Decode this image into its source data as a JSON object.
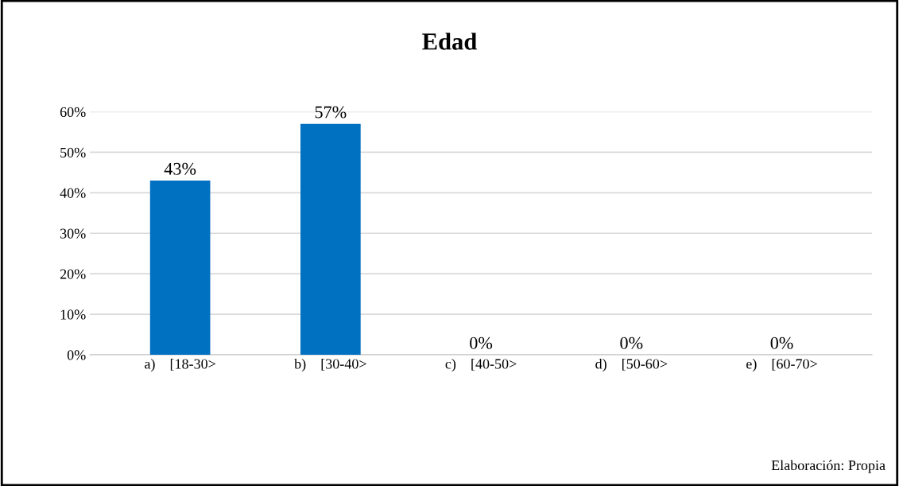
{
  "chart_data": {
    "type": "bar",
    "title": "Edad",
    "categories": [
      "a)    [18-30>",
      "b)    [30-40>",
      "c)    [40-50>",
      "d)    [50-60>",
      "e)    [60-70>"
    ],
    "values": [
      43,
      57,
      0,
      0,
      0
    ],
    "color": "#0070c0",
    "value_labels": [
      "43%",
      "57%",
      "0%",
      "0%",
      "0%"
    ],
    "ylim": [
      0,
      60
    ],
    "yticks": [
      {
        "value": 0,
        "label": "0%"
      },
      {
        "value": 10,
        "label": "10%"
      },
      {
        "value": 20,
        "label": "20%"
      },
      {
        "value": 30,
        "label": "30%"
      },
      {
        "value": 40,
        "label": "40%"
      },
      {
        "value": 50,
        "label": "50%"
      },
      {
        "value": 60,
        "label": "60%"
      }
    ],
    "grid": "y",
    "annotations": [
      "Elaboración: Propia"
    ]
  }
}
